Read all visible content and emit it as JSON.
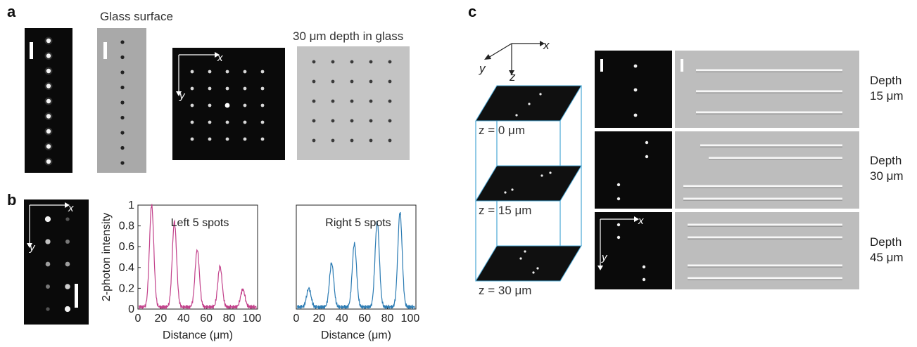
{
  "panels": {
    "a": {
      "label": "a",
      "glass_surface_caption": "Glass surface",
      "depth_caption": "30 μm depth in glass",
      "axis_x": "x",
      "axis_y": "y"
    },
    "b": {
      "label": "b",
      "axis_x": "x",
      "axis_y": "y"
    },
    "c": {
      "label": "c",
      "axis_x": "x",
      "axis_y": "y",
      "axis_z": "z",
      "planes": [
        "z = 0 μm",
        "z = 15 μm",
        "z = 30 μm"
      ],
      "depths": [
        {
          "line1": "Depth",
          "line2": "15 μm"
        },
        {
          "line1": "Depth",
          "line2": "30 μm"
        },
        {
          "line1": "Depth",
          "line2": "45 μm"
        }
      ]
    }
  },
  "chart_data": [
    {
      "type": "line",
      "annotation": "Left 5 spots",
      "xlabel": "Distance (μm)",
      "ylabel": "2-photon intensity",
      "xlim": [
        0,
        105
      ],
      "ylim": [
        0,
        1
      ],
      "xticks": [
        0,
        20,
        40,
        60,
        80,
        100
      ],
      "yticks": [
        0,
        0.2,
        0.4,
        0.6,
        0.8,
        1
      ],
      "ytick_labels": [
        "0",
        "0.2",
        "0.4",
        "0.6",
        "0.8",
        "1"
      ],
      "color": "#c2408a",
      "peaks": [
        {
          "x": 12,
          "y": 1.0
        },
        {
          "x": 32,
          "y": 0.84
        },
        {
          "x": 52,
          "y": 0.57
        },
        {
          "x": 72,
          "y": 0.41
        },
        {
          "x": 92,
          "y": 0.19
        }
      ],
      "baseline": 0.02
    },
    {
      "type": "line",
      "annotation": "Right 5 spots",
      "xlabel": "Distance (μm)",
      "ylabel": "",
      "xlim": [
        0,
        105
      ],
      "ylim": [
        0,
        1
      ],
      "xticks": [
        0,
        20,
        40,
        60,
        80,
        100
      ],
      "color": "#2b7bb3",
      "peaks": [
        {
          "x": 11,
          "y": 0.2
        },
        {
          "x": 31,
          "y": 0.44
        },
        {
          "x": 51,
          "y": 0.63
        },
        {
          "x": 71,
          "y": 0.84
        },
        {
          "x": 91,
          "y": 0.93
        }
      ],
      "baseline": 0.02
    }
  ]
}
